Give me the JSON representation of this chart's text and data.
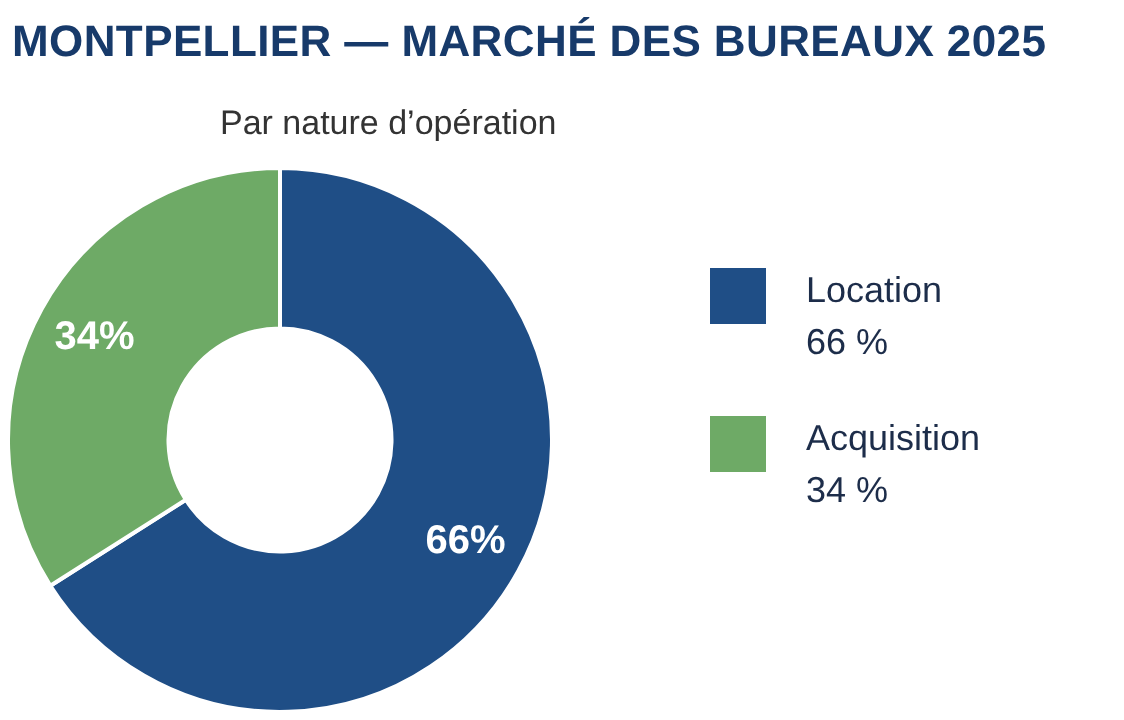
{
  "chart_data": {
    "type": "donut",
    "title": "MONTPELLIER — MARCHÉ DES BUREAUX 2025",
    "subtitle": "Par nature d’opération",
    "categories": [
      "Location",
      "Acquisition"
    ],
    "values": [
      66,
      34
    ],
    "colors": [
      "#1f4e86",
      "#6eaa66"
    ],
    "value_labels": [
      "66%",
      "34%"
    ],
    "annotations": [
      "66 %",
      "34 %"
    ],
    "legend": "right"
  }
}
